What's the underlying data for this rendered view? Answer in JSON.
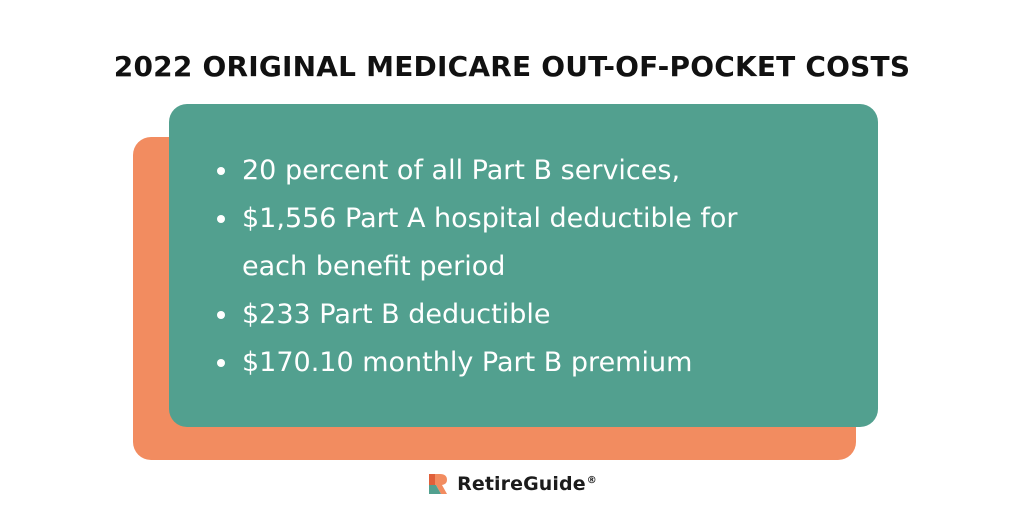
{
  "title": "2022 ORIGINAL MEDICARE OUT-OF-POCKET COSTS",
  "bullets": [
    "20 percent of all Part B services,",
    "$1,556 Part A hospital deductible for each benefit period",
    "$233 Part B deductible",
    "$170.10 monthly Part B premium"
  ],
  "brand": {
    "name": "RetireGuide",
    "registered": "®",
    "icon": "retireguide-logo-icon"
  },
  "colors": {
    "front_card": "#52a08f",
    "back_card": "#f28c60",
    "title_text": "#111111",
    "bullet_text": "#ffffff"
  }
}
